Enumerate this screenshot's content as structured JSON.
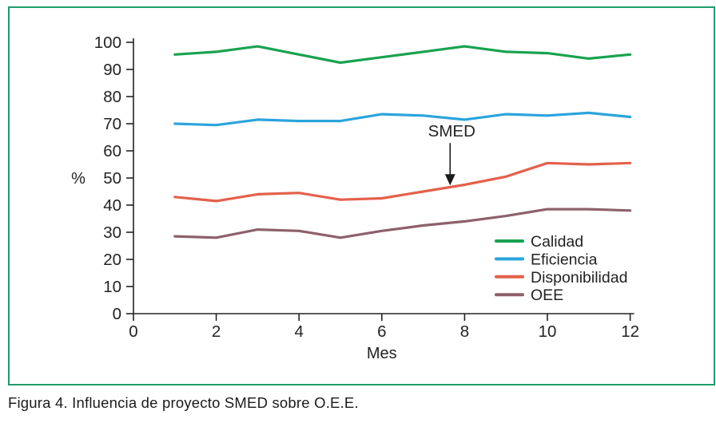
{
  "figure": {
    "caption": "Figura 4. Influencia de proyecto SMED sobre O.E.E."
  },
  "chart_data": {
    "type": "line",
    "title": "",
    "xlabel": "Mes",
    "ylabel": "%",
    "xlim": [
      0,
      12
    ],
    "ylim": [
      0,
      100
    ],
    "x_ticks": [
      0,
      2,
      4,
      6,
      8,
      10,
      12
    ],
    "y_ticks": [
      0,
      10,
      20,
      30,
      40,
      50,
      60,
      70,
      80,
      90,
      100
    ],
    "grid": false,
    "legend_position": "inside-lower-right",
    "frame_color": "#1E9C6C",
    "axis_color": "#232323",
    "x": [
      1,
      2,
      3,
      4,
      5,
      6,
      7,
      8,
      9,
      10,
      11,
      12
    ],
    "series": [
      {
        "name": "Calidad",
        "color": "#18A24F",
        "values": [
          95.5,
          96.5,
          98.5,
          95.5,
          92.5,
          94.5,
          96.5,
          98.5,
          96.5,
          96,
          94,
          95.5
        ]
      },
      {
        "name": "Eficiencia",
        "color": "#2BA4DC",
        "values": [
          70,
          69.5,
          71.5,
          71,
          71,
          73.5,
          73,
          71.5,
          73.5,
          73,
          74,
          72.5
        ]
      },
      {
        "name": "Disponibilidad",
        "color": "#E4604B",
        "values": [
          43,
          41.5,
          44,
          44.5,
          42,
          42.5,
          45,
          47.5,
          50.5,
          55.5,
          55,
          55.5
        ]
      },
      {
        "name": "OEE",
        "color": "#8E606C",
        "values": [
          28.5,
          28,
          31,
          30.5,
          28,
          30.5,
          32.5,
          34,
          36,
          38.5,
          38.5,
          38
        ]
      }
    ],
    "annotation": {
      "label": "SMED",
      "arrow_points_to": {
        "x": 7.65,
        "y": 47
      }
    }
  }
}
